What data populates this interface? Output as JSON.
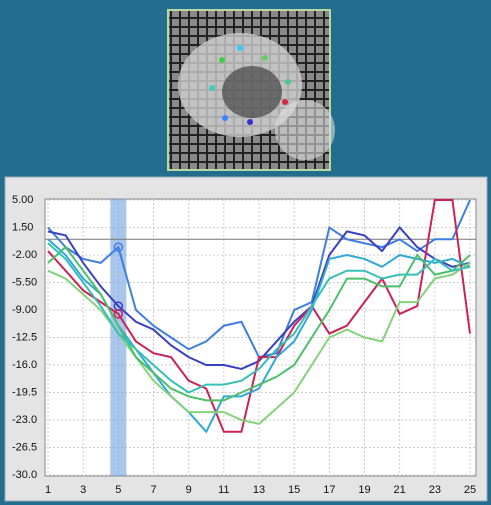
{
  "chart_data": {
    "type": "line",
    "x": [
      1,
      2,
      3,
      4,
      5,
      6,
      7,
      8,
      9,
      10,
      11,
      12,
      13,
      14,
      15,
      16,
      17,
      18,
      19,
      20,
      21,
      22,
      23,
      24,
      25
    ],
    "xlim": [
      1,
      25
    ],
    "xticks": [
      1,
      3,
      5,
      7,
      9,
      11,
      13,
      15,
      17,
      19,
      21,
      23,
      25
    ],
    "ylim": [
      -30,
      5
    ],
    "yticks": [
      {
        "value": 5,
        "label": "5.00"
      },
      {
        "value": 1.5,
        "label": "1.50"
      },
      {
        "value": -2,
        "label": "-2.00"
      },
      {
        "value": -5.5,
        "label": "-5.50"
      },
      {
        "value": -9,
        "label": "-9.00"
      },
      -12.5,
      {
        "value": -16,
        "label": "-16.0"
      },
      -19.5,
      {
        "value": -23,
        "label": "-23.0"
      },
      -26.5,
      {
        "value": -30,
        "label": "-30.0"
      }
    ],
    "grid": true,
    "reference_line": 0,
    "highlight_x": 5,
    "series": [
      {
        "color": "#3f7ee0",
        "values": [
          1.5,
          -1,
          -2.5,
          -3,
          -1,
          -9,
          -11,
          -12.5,
          -14,
          -13,
          -11,
          -10.5,
          -15,
          -14.5,
          -9,
          -8,
          1.5,
          0,
          -0.5,
          -1,
          0,
          -1.5,
          0,
          0,
          5
        ]
      },
      {
        "color": "#3a3fc4",
        "values": [
          1,
          0.5,
          -3,
          -6,
          -8.5,
          -10.5,
          -11.5,
          -13.5,
          -15,
          -16,
          -16,
          -16.5,
          -15.5,
          -13,
          -10.5,
          -8.5,
          -2,
          1,
          0.5,
          -1.5,
          1.5,
          -1,
          -2.5,
          -3.5,
          -3
        ]
      },
      {
        "color": "#cc2255",
        "values": [
          -1.5,
          -4,
          -6.5,
          -8,
          -9.5,
          -13,
          -14.5,
          -15,
          -18,
          -19,
          -24.5,
          -24.5,
          -15,
          -15,
          -11,
          -8.5,
          -12,
          -11,
          -8,
          -5,
          -9.5,
          -8.5,
          5,
          5,
          -12
        ]
      },
      {
        "color": "#30a8d8",
        "values": [
          0,
          -2,
          -5,
          -7,
          -11,
          -14,
          -17,
          -20,
          -22,
          -24.5,
          -20,
          -20,
          -19,
          -15,
          -13,
          -9,
          -2.5,
          -2,
          -2.5,
          -3.5,
          -2,
          -2.5,
          -3,
          -2.5,
          -3.5
        ]
      },
      {
        "color": "#84d27c",
        "values": [
          -4,
          -5,
          -7,
          -9,
          -12,
          -15,
          -18,
          -20,
          -22,
          -22,
          -22,
          -23,
          -23.5,
          -21.5,
          -19.5,
          -16,
          -12.5,
          -11.5,
          -12.5,
          -13,
          -8,
          -8,
          -5,
          -4.5,
          -3
        ]
      },
      {
        "color": "#4cbf6a",
        "values": [
          -3,
          -1,
          -4,
          -7,
          -11,
          -15,
          -17,
          -19,
          -20,
          -20.5,
          -20.5,
          -19.5,
          -18.5,
          -17.5,
          -16,
          -12.5,
          -9,
          -5,
          -5,
          -6,
          -6,
          -2,
          -4.5,
          -4,
          -2
        ]
      },
      {
        "color": "#38c0b8",
        "values": [
          -0.5,
          -2.5,
          -5.5,
          -8.5,
          -12,
          -14,
          -16,
          -18,
          -19.5,
          -18.5,
          -18.5,
          -18,
          -16.5,
          -14,
          -12,
          -8.5,
          -5,
          -4,
          -4,
          -5,
          -4.5,
          -4.5,
          -2.5,
          -4,
          -3.5
        ]
      }
    ],
    "markers_at_index": 4
  }
}
